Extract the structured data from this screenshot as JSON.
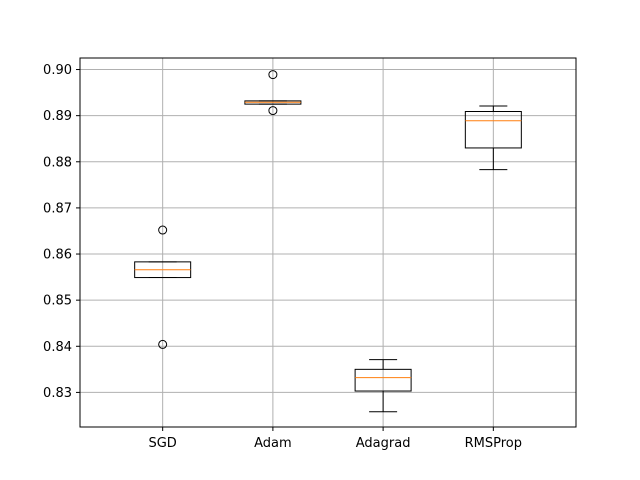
{
  "chart_data": {
    "type": "boxplot",
    "title": "",
    "xlabel": "",
    "ylabel": "",
    "categories": [
      "SGD",
      "Adam",
      "Adagrad",
      "RMSProp"
    ],
    "boxes": [
      {
        "category": "SGD",
        "whisker_low": 0.8549,
        "q1": 0.8549,
        "median": 0.8566,
        "q3": 0.8583,
        "whisker_high": 0.8583,
        "outliers": [
          0.8404,
          0.8652
        ]
      },
      {
        "category": "Adam",
        "whisker_low": 0.8925,
        "q1": 0.8925,
        "median": 0.8929,
        "q3": 0.8932,
        "whisker_high": 0.8932,
        "outliers": [
          0.8911,
          0.8989
        ]
      },
      {
        "category": "Adagrad",
        "whisker_low": 0.8258,
        "q1": 0.8303,
        "median": 0.8332,
        "q3": 0.835,
        "whisker_high": 0.8371,
        "outliers": []
      },
      {
        "category": "RMSProp",
        "whisker_low": 0.8783,
        "q1": 0.883,
        "median": 0.8889,
        "q3": 0.8909,
        "whisker_high": 0.8921,
        "outliers": []
      }
    ],
    "y_ticks": [
      0.83,
      0.84,
      0.85,
      0.86,
      0.87,
      0.88,
      0.89,
      0.9
    ],
    "y_tick_labels": [
      "0.83",
      "0.84",
      "0.85",
      "0.86",
      "0.87",
      "0.88",
      "0.89",
      "0.90"
    ],
    "ylim": [
      0.8225,
      0.9025
    ],
    "grid": true,
    "colors": {
      "box": "#000000",
      "median": "#ff7f0e",
      "grid": "#b0b0b0",
      "axes": "#000000"
    }
  }
}
